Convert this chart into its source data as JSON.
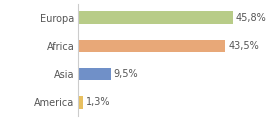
{
  "categories": [
    "America",
    "Asia",
    "Africa",
    "Europa"
  ],
  "values": [
    1.3,
    9.5,
    43.5,
    45.8
  ],
  "labels": [
    "1,3%",
    "9,5%",
    "43,5%",
    "45,8%"
  ],
  "bar_colors": [
    "#e8c060",
    "#7090c8",
    "#e8a878",
    "#b8cc88"
  ],
  "xlim": [
    0,
    58
  ],
  "background_color": "#ffffff",
  "label_fontsize": 7.0,
  "ytick_fontsize": 7.0,
  "bar_height": 0.45
}
